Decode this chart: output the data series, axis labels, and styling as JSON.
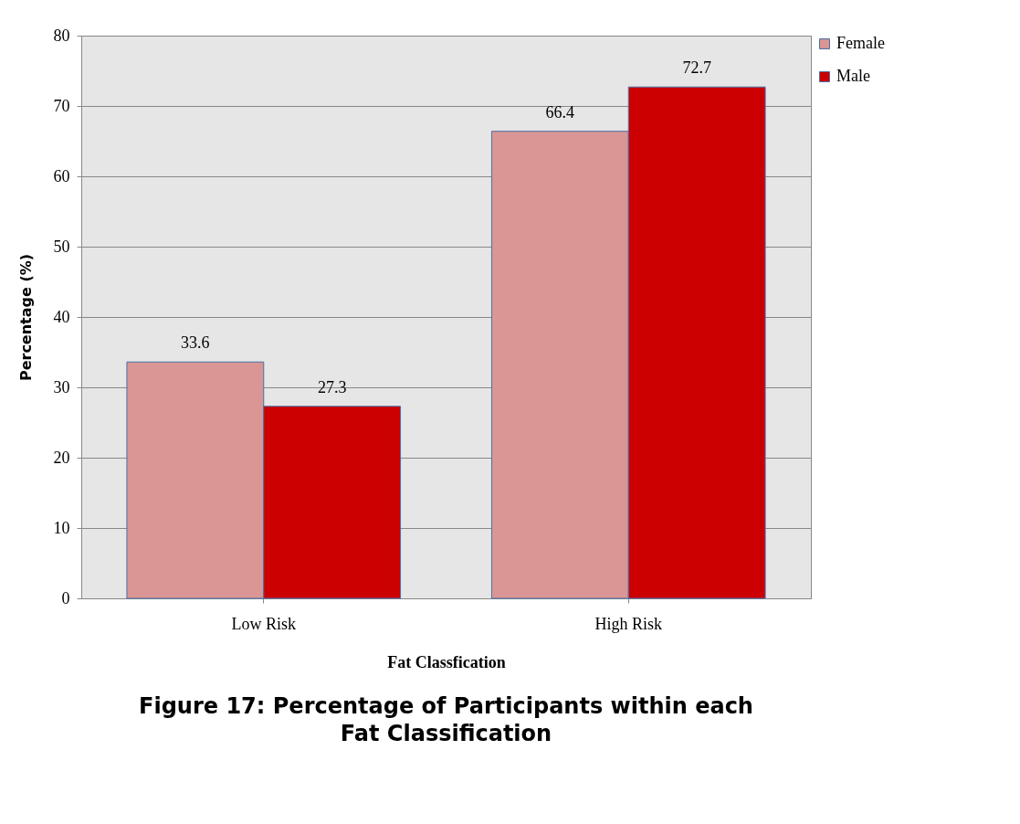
{
  "chart_data": {
    "type": "bar",
    "title": "Figure 17: Percentage of Participants within each Fat Classification",
    "xlabel": "Fat Classfication",
    "ylabel": "Percentage (%)",
    "categories": [
      "Low Risk",
      "High Risk"
    ],
    "series": [
      {
        "name": "Female",
        "color": "#d99694",
        "values": [
          33.6,
          66.4
        ]
      },
      {
        "name": "Male",
        "color": "#cc0000",
        "values": [
          27.3,
          72.7
        ]
      }
    ],
    "ylim": [
      0,
      80
    ],
    "yticks": [
      0,
      10,
      20,
      30,
      40,
      50,
      60,
      70,
      80
    ],
    "grid": "y",
    "legend": "top right",
    "data_labels": true
  }
}
